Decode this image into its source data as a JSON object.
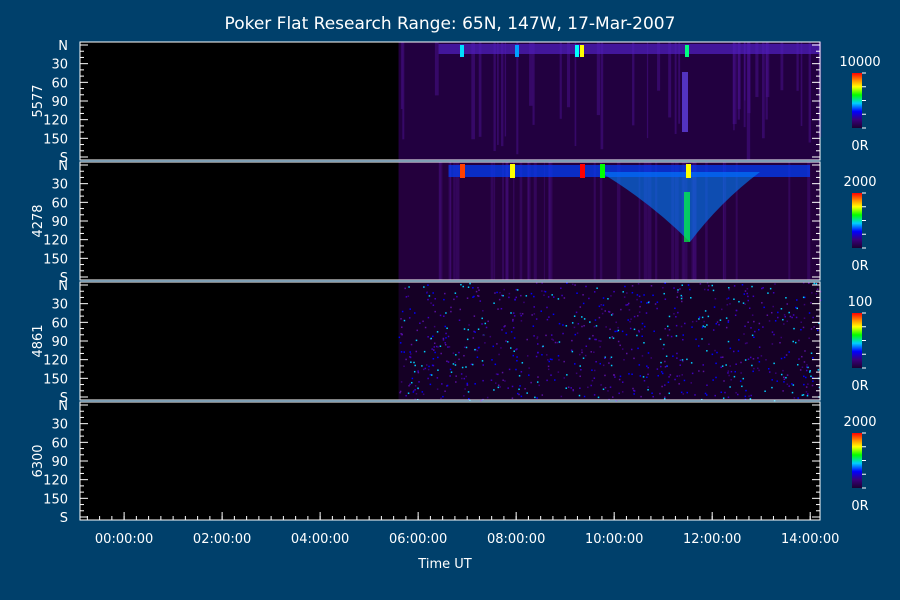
{
  "chart_data": {
    "type": "heatmap",
    "title": "Poker Flat Research Range: 65N, 147W, 17-Mar-2007",
    "xlabel": "Time UT",
    "x_tick_labels": [
      "00:00:00",
      "02:00:00",
      "04:00:00",
      "06:00:00",
      "08:00:00",
      "10:00:00",
      "12:00:00",
      "14:00:00"
    ],
    "x_tick_hours": [
      0,
      2,
      4,
      6,
      8,
      10,
      12,
      14
    ],
    "x_range_hours": [
      -0.9,
      14.2
    ],
    "data_start_hour": 5.6,
    "y_tick_labels": [
      "N",
      "30",
      "60",
      "90",
      "120",
      "150",
      "S"
    ],
    "y_tick_values": [
      0,
      30,
      60,
      90,
      120,
      150,
      180
    ],
    "panels": [
      {
        "wavelength": "5577",
        "colorbar_max": "10000",
        "colorbar_min": "0R",
        "has_data": true
      },
      {
        "wavelength": "4278",
        "colorbar_max": "2000",
        "colorbar_min": "0R",
        "has_data": true
      },
      {
        "wavelength": "4861",
        "colorbar_max": "100",
        "colorbar_min": "0R",
        "has_data": true
      },
      {
        "wavelength": "6300",
        "colorbar_max": "2000",
        "colorbar_min": "0R",
        "has_data": false
      }
    ],
    "colorscale": [
      "#1a0033",
      "#3a007a",
      "#0000ff",
      "#00d0ff",
      "#00ff00",
      "#ffff00",
      "#ff8000",
      "#ff0000"
    ]
  }
}
